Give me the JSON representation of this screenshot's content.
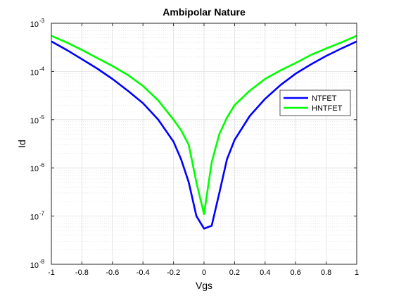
{
  "chart_data": {
    "type": "line",
    "title": "Ambipolar Nature",
    "xlabel": "Vgs",
    "ylabel": "Id",
    "xlim": [
      -1,
      1
    ],
    "ylim": [
      1e-08,
      0.001
    ],
    "yscale": "log",
    "grid": true,
    "minor_grid": true,
    "legend_position": "right, upper-middle",
    "x_ticks": [
      -1,
      -0.8,
      -0.6,
      -0.4,
      -0.2,
      0,
      0.2,
      0.4,
      0.6,
      0.8,
      1
    ],
    "x_tick_labels": [
      "-1",
      "-0.8",
      "-0.6",
      "-0.4",
      "-0.2",
      "0",
      "0.2",
      "0.4",
      "0.6",
      "0.8",
      "1"
    ],
    "y_tick_exponents": [
      -8,
      -7,
      -6,
      -5,
      -4,
      -3
    ],
    "y_tick_base": "10",
    "series": [
      {
        "name": "NTFET",
        "color": "#0000ff",
        "x": [
          -1,
          -0.9,
          -0.8,
          -0.7,
          -0.6,
          -0.5,
          -0.4,
          -0.3,
          -0.2,
          -0.15,
          -0.1,
          -0.05,
          0,
          0.05,
          0.1,
          0.15,
          0.2,
          0.3,
          0.4,
          0.5,
          0.6,
          0.7,
          0.8,
          0.9,
          1
        ],
        "y": [
          0.00042,
          0.00028,
          0.00018,
          0.000115,
          7e-05,
          4e-05,
          2.2e-05,
          1e-05,
          3.5e-06,
          1.5e-06,
          5e-07,
          1e-07,
          5.5e-08,
          6.3e-08,
          3e-07,
          1.5e-06,
          3.8e-06,
          1.2e-05,
          2.7e-05,
          5.2e-05,
          9e-05,
          0.00014,
          0.00021,
          0.0003,
          0.00042
        ]
      },
      {
        "name": "HNTFET",
        "color": "#00ff00",
        "x": [
          -1,
          -0.9,
          -0.8,
          -0.7,
          -0.6,
          -0.5,
          -0.4,
          -0.3,
          -0.2,
          -0.15,
          -0.1,
          -0.05,
          0,
          0.05,
          0.1,
          0.15,
          0.2,
          0.3,
          0.4,
          0.5,
          0.6,
          0.7,
          0.8,
          0.9,
          1
        ],
        "y": [
          0.00055,
          0.0004,
          0.00028,
          0.00019,
          0.00013,
          8.5e-05,
          5e-05,
          2.5e-05,
          1e-05,
          6e-06,
          3e-06,
          5e-07,
          1.1e-07,
          1.3e-06,
          5e-06,
          1.1e-05,
          2e-05,
          4e-05,
          7e-05,
          0.000105,
          0.00015,
          0.00022,
          0.0003,
          0.0004,
          0.00055
        ]
      }
    ]
  }
}
